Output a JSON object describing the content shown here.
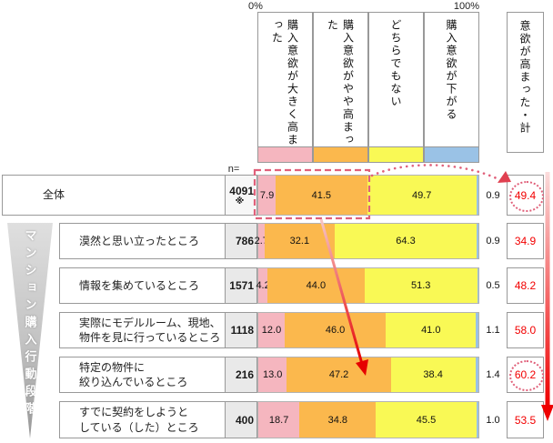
{
  "chart_data": {
    "type": "bar",
    "stacked": true,
    "orientation": "horizontal",
    "x_axis": {
      "min_label": "0%",
      "max_label": "100%",
      "range_percent": [
        0,
        100
      ]
    },
    "n_header": "n=",
    "total_header": "意欲が高まった・計",
    "sidebar_label": "マンション購入行動段階",
    "series": [
      {
        "label": "購入意欲が大きく高まった",
        "color": "#f5b6bf"
      },
      {
        "label": "購入意欲がやや高まった",
        "color": "#fbb84d"
      },
      {
        "label": "どちらでもない",
        "color": "#f9f955"
      },
      {
        "label": "購入意欲が下がる",
        "color": "#9ac2e6"
      }
    ],
    "rows": [
      {
        "label": "全体",
        "n": "4091",
        "n_note": "※",
        "values": [
          "7.9",
          "41.5",
          "49.7",
          "0.9"
        ],
        "total": "49.4",
        "total_circled": true,
        "dashed_highlight": true
      },
      {
        "label": "漠然と思い立ったところ",
        "n": "786",
        "values": [
          "2.7",
          "32.1",
          "64.3",
          "0.9"
        ],
        "total": "34.9"
      },
      {
        "label": "情報を集めているところ",
        "n": "1571",
        "values": [
          "4.2",
          "44.0",
          "51.3",
          "0.5"
        ],
        "total": "48.2"
      },
      {
        "label": "実際にモデルルーム、現地、\n物件を見に行っているところ",
        "n": "1118",
        "values": [
          "12.0",
          "46.0",
          "41.0",
          "1.1"
        ],
        "total": "58.0"
      },
      {
        "label": "特定の物件に\n絞り込んでいるところ",
        "n": "216",
        "values": [
          "13.0",
          "47.2",
          "38.4",
          "1.4"
        ],
        "total": "60.2",
        "total_circled": true
      },
      {
        "label": "すでに契約をしようと\nしている（した）ところ",
        "n": "400",
        "values": [
          "18.7",
          "34.8",
          "45.5",
          "1.0"
        ],
        "total": "53.5"
      }
    ],
    "annotations": {
      "accent_color": "#e0607a",
      "arrow_color": "#e60000",
      "total_value_color": "#f20000",
      "highlighted_totals": [
        "49.4",
        "60.2"
      ]
    }
  }
}
